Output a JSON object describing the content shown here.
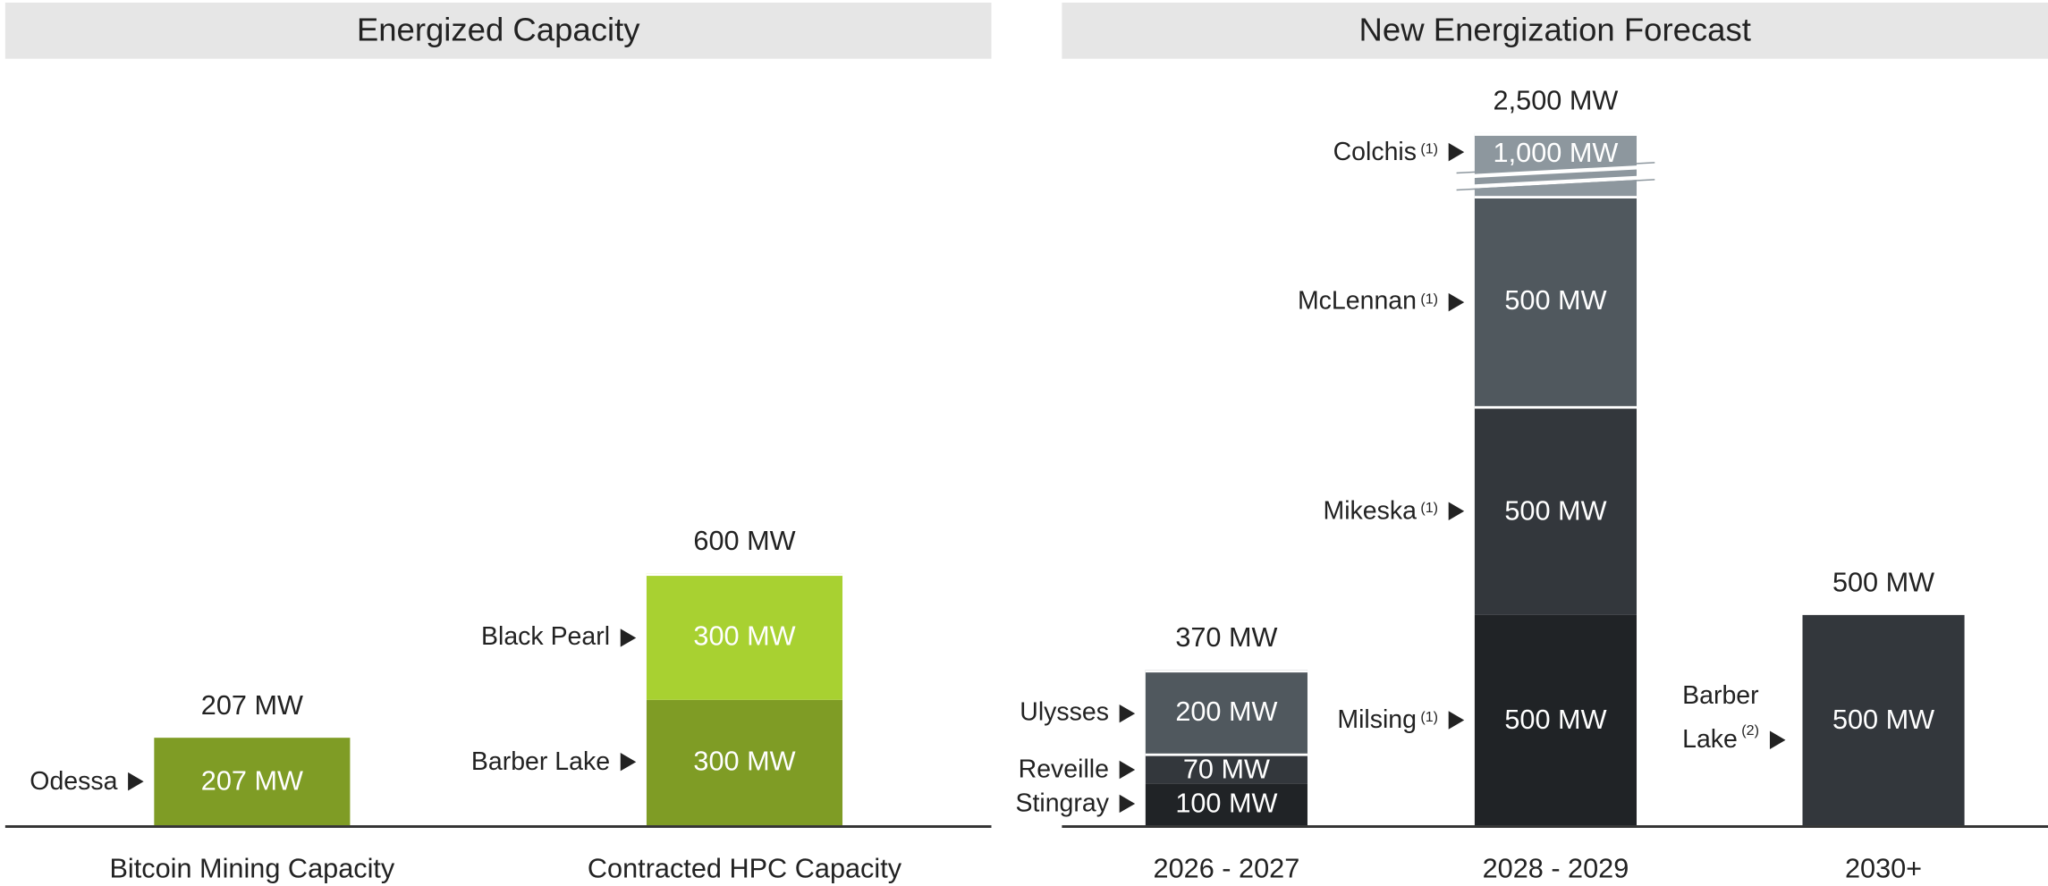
{
  "chart_data": [
    {
      "type": "bar",
      "stacked": true,
      "title": "Energized Capacity",
      "categories": [
        "Bitcoin Mining Capacity",
        "Contracted HPC Capacity"
      ],
      "totals": [
        207,
        600
      ],
      "total_labels": [
        "207 MW",
        "600 MW"
      ],
      "stacks": [
        [
          {
            "name": "Odessa",
            "value": 207,
            "value_label": "207 MW",
            "color": "#7f9c25"
          }
        ],
        [
          {
            "name": "Barber Lake",
            "value": 300,
            "value_label": "300 MW",
            "color": "#7f9c25"
          },
          {
            "name": "Black Pearl",
            "value": 300,
            "value_label": "300 MW",
            "color": "#a8d131"
          }
        ]
      ]
    },
    {
      "type": "bar",
      "stacked": true,
      "title": "New Energization Forecast",
      "categories": [
        "2026 - 2027",
        "2028 - 2029",
        "2030+"
      ],
      "totals": [
        370,
        2500,
        500
      ],
      "total_labels": [
        "370 MW",
        "2,500 MW",
        "500 MW"
      ],
      "stacks": [
        [
          {
            "name": "Stingray",
            "value": 100,
            "value_label": "100 MW",
            "color": "#202326"
          },
          {
            "name": "Reveille",
            "value": 70,
            "value_label": "70 MW",
            "color": "#33373c"
          },
          {
            "name": "Ulysses",
            "value": 200,
            "value_label": "200 MW",
            "color": "#50585e"
          }
        ],
        [
          {
            "name": "Milsing",
            "note": "(1)",
            "value": 500,
            "value_label": "500 MW",
            "color": "#202326"
          },
          {
            "name": "Mikeska",
            "note": "(1)",
            "value": 500,
            "value_label": "500 MW",
            "color": "#33373c"
          },
          {
            "name": "McLennan",
            "note": "(1)",
            "value": 500,
            "value_label": "500 MW",
            "color": "#50585e"
          },
          {
            "name": "Colchis",
            "note": "(1)",
            "value": 1000,
            "value_label": "1,000 MW",
            "color": "#8d979e",
            "broken": true
          }
        ],
        [
          {
            "name": "Barber Lake",
            "note": "(2)",
            "value": 500,
            "value_label": "500 MW",
            "color": "#33373c",
            "wrap": true
          }
        ]
      ]
    }
  ]
}
